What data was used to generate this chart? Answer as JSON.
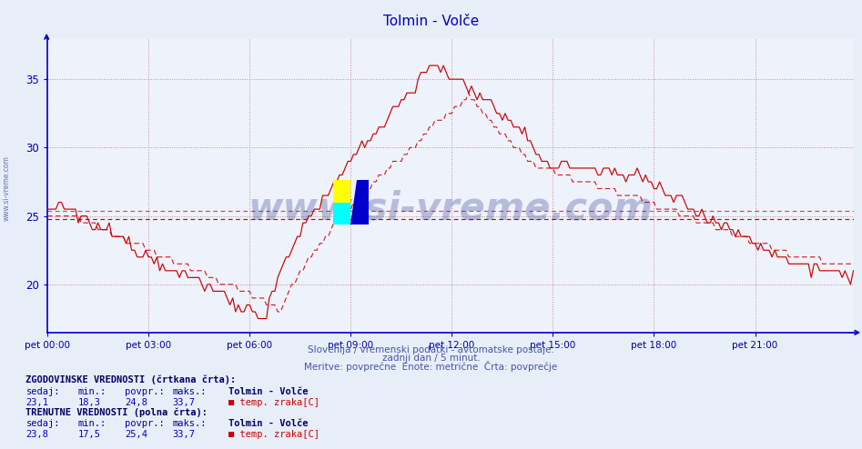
{
  "title": "Tolmin - Volče",
  "title_color": "#0000bb",
  "bg_color": "#e8eef8",
  "plot_bg_color": "#eef2fb",
  "axis_color": "#0000cc",
  "grid_color": "#ddaaaa",
  "line_color": "#cc0000",
  "ylabel_color": "#0000aa",
  "xlabel_color": "#0000aa",
  "xlabels": [
    "pet 00:00",
    "pet 03:00",
    "pet 06:00",
    "pet 09:00",
    "pet 12:00",
    "pet 15:00",
    "pet 18:00",
    "pet 21:00"
  ],
  "xtick_positions": [
    0,
    36,
    72,
    108,
    144,
    180,
    216,
    252
  ],
  "ylim": [
    16.5,
    38.0
  ],
  "yticks": [
    20,
    25,
    30,
    35
  ],
  "hist_avg": 24.8,
  "curr_avg": 25.4,
  "subtitle1": "Slovenija / vremenski podatki - avtomatske postaje.",
  "subtitle2": "zadnji dan / 5 minut.",
  "subtitle3": "Meritve: povprečne  Enote: metrične  Črta: povprečje",
  "subtitle_color": "#4455aa",
  "label1": "ZGODOVINSKE VREDNOSTI (črtkana črta):",
  "label2": "TRENUTNE VREDNOSTI (polna črta):",
  "col_sedaj": "sedaj:",
  "col_min": "min.:",
  "col_povpr": "povpr.:",
  "col_maks": "maks.:",
  "hist_sedaj": "23,1",
  "hist_min": "18,3",
  "hist_povpr": "24,8",
  "hist_maks": "33,7",
  "curr_sedaj": "23,8",
  "curr_min": "17,5",
  "curr_povpr": "25,4",
  "curr_maks": "33,7",
  "station": "Tolmin - Volče",
  "series_label": "temp. zraka[C]",
  "watermark": "www.si-vreme.com",
  "watermark_color": "#223388",
  "total_points": 288
}
